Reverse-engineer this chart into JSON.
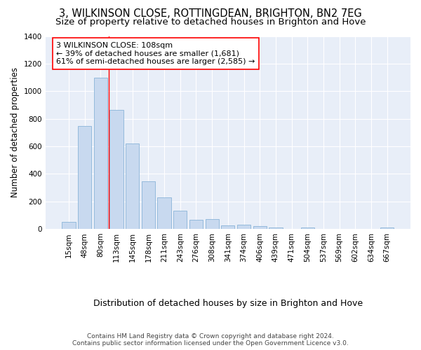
{
  "title": "3, WILKINSON CLOSE, ROTTINGDEAN, BRIGHTON, BN2 7EG",
  "subtitle": "Size of property relative to detached houses in Brighton and Hove",
  "xlabel": "Distribution of detached houses by size in Brighton and Hove",
  "ylabel": "Number of detached properties",
  "categories": [
    "15sqm",
    "48sqm",
    "80sqm",
    "113sqm",
    "145sqm",
    "178sqm",
    "211sqm",
    "243sqm",
    "276sqm",
    "308sqm",
    "341sqm",
    "374sqm",
    "406sqm",
    "439sqm",
    "471sqm",
    "504sqm",
    "537sqm",
    "569sqm",
    "602sqm",
    "634sqm",
    "667sqm"
  ],
  "values": [
    50,
    750,
    1100,
    865,
    620,
    345,
    230,
    133,
    65,
    70,
    28,
    30,
    20,
    13,
    0,
    10,
    0,
    0,
    0,
    0,
    10
  ],
  "bar_color": "#c8d9ef",
  "bar_edge_color": "#8ab4d8",
  "vline_x": 2.5,
  "vline_color": "red",
  "annotation_text": "3 WILKINSON CLOSE: 108sqm\n← 39% of detached houses are smaller (1,681)\n61% of semi-detached houses are larger (2,585) →",
  "annotation_box_color": "white",
  "annotation_box_edge_color": "red",
  "ylim": [
    0,
    1400
  ],
  "yticks": [
    0,
    200,
    400,
    600,
    800,
    1000,
    1200,
    1400
  ],
  "footer_line1": "Contains HM Land Registry data © Crown copyright and database right 2024.",
  "footer_line2": "Contains public sector information licensed under the Open Government Licence v3.0.",
  "bg_color": "#ffffff",
  "plot_bg_color": "#e8eef8",
  "title_fontsize": 10.5,
  "subtitle_fontsize": 9.5,
  "tick_fontsize": 7.5,
  "ylabel_fontsize": 8.5,
  "xlabel_fontsize": 9,
  "footer_fontsize": 6.5,
  "annotation_fontsize": 8
}
